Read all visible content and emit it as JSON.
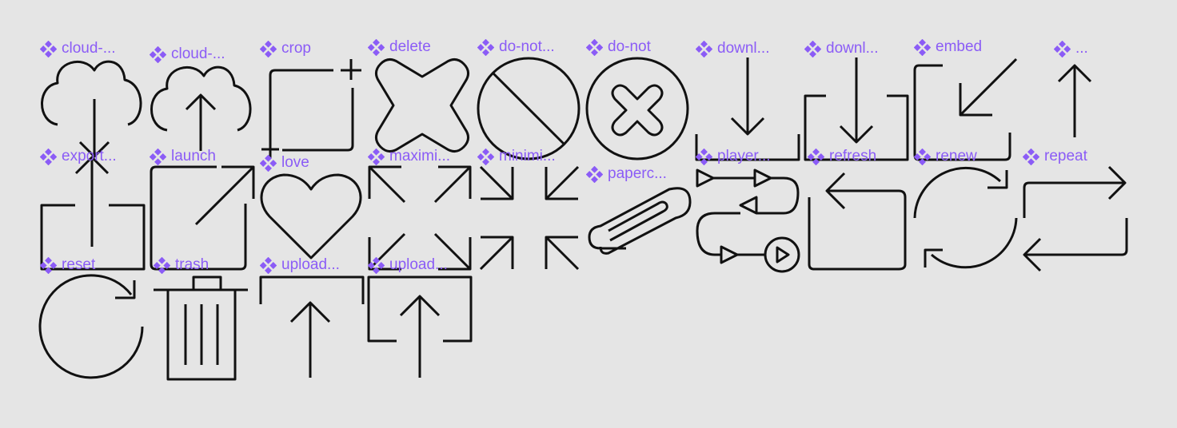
{
  "components": [
    {
      "id": "cloud-download",
      "label": "cloud-..."
    },
    {
      "id": "cloud-upload",
      "label": "cloud-..."
    },
    {
      "id": "crop",
      "label": "crop"
    },
    {
      "id": "delete",
      "label": "delete"
    },
    {
      "id": "do-not-alt",
      "label": "do-not..."
    },
    {
      "id": "do-not",
      "label": "do-not"
    },
    {
      "id": "download-simple",
      "label": "downl..."
    },
    {
      "id": "download-tray",
      "label": "downl..."
    },
    {
      "id": "embed",
      "label": "embed"
    },
    {
      "id": "arrow-up",
      "label": "..."
    },
    {
      "id": "export",
      "label": "export..."
    },
    {
      "id": "launch",
      "label": "launch"
    },
    {
      "id": "love",
      "label": "love"
    },
    {
      "id": "maximize",
      "label": "maximi..."
    },
    {
      "id": "minimize",
      "label": "minimi..."
    },
    {
      "id": "paperclip",
      "label": "paperc..."
    },
    {
      "id": "playerflow",
      "label": "player..."
    },
    {
      "id": "refresh",
      "label": "refresh"
    },
    {
      "id": "renew",
      "label": "renew"
    },
    {
      "id": "repeat",
      "label": "repeat"
    },
    {
      "id": "reset",
      "label": "reset"
    },
    {
      "id": "trash",
      "label": "trash"
    },
    {
      "id": "upload-simple",
      "label": "upload..."
    },
    {
      "id": "upload-tray",
      "label": "upload..."
    }
  ],
  "colors": {
    "background": "#e5e5e5",
    "label": "#8b5cf6",
    "stroke": "#111111"
  }
}
